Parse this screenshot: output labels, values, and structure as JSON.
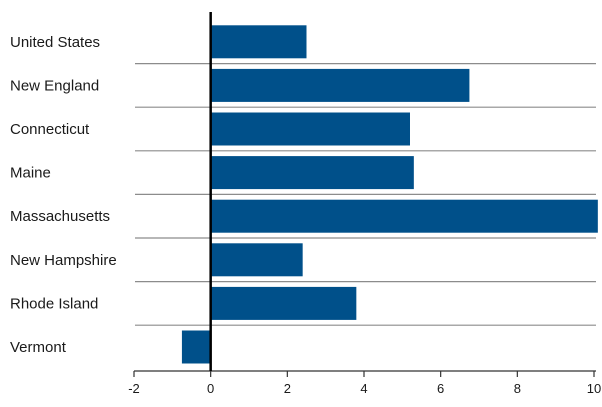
{
  "colors": {
    "bar": "#00508a",
    "zero_line": "#000000",
    "separator": "#8c8c8c",
    "axis": "#333333",
    "text": "#1a1a1a"
  },
  "chart_data": {
    "type": "bar",
    "orientation": "horizontal",
    "title": "",
    "xlabel": "",
    "ylabel": "",
    "categories": [
      "United States",
      "New England",
      "Connecticut",
      "Maine",
      "Massachusetts",
      "New Hampshire",
      "Rhode Island",
      "Vermont"
    ],
    "values": [
      2.5,
      6.75,
      5.2,
      5.3,
      10.1,
      2.4,
      3.8,
      -0.75
    ],
    "xlim": [
      -2,
      10
    ],
    "xticks": [
      -2,
      0,
      2,
      4,
      6,
      8,
      10
    ],
    "grid": false,
    "legend": "none"
  }
}
